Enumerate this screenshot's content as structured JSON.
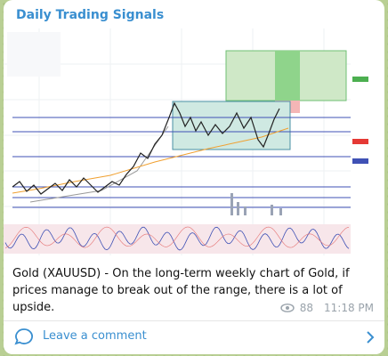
{
  "header": {
    "title": "Daily Trading Signals"
  },
  "post": {
    "text": "Gold (XAUUSD) - On the long-term weekly chart of Gold, if prices manage to break out of the range, there is a lot of upside.",
    "views": "88",
    "time": "11:18 PM"
  },
  "footer": {
    "action": "Leave a comment"
  }
}
